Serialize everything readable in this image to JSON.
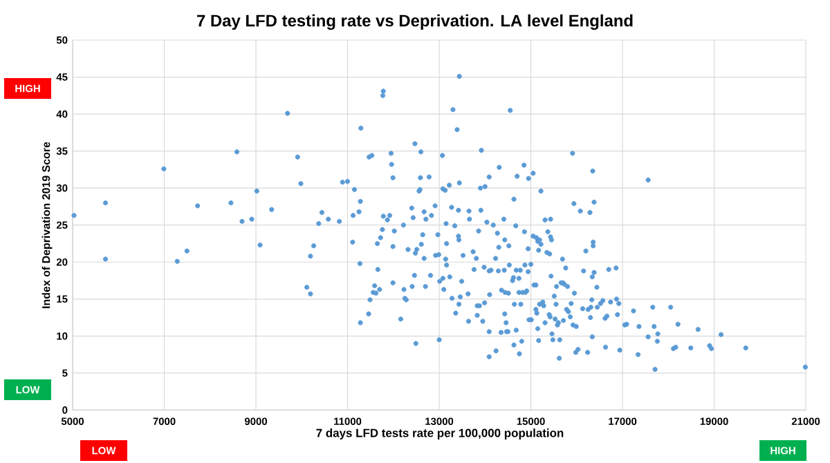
{
  "chart_data": {
    "type": "scatter",
    "title": "7 Day LFD testing rate vs Deprivation.  LA level England",
    "xlabel": "7 days LFD tests rate per 100,000 population",
    "ylabel": "Index of Deprivation 2019 Score",
    "annotations": [
      "HIGH",
      "LOW",
      "LOW",
      "HIGH"
    ],
    "xlim": [
      5000,
      21000
    ],
    "xticks": [
      5000,
      7000,
      9000,
      11000,
      13000,
      15000,
      17000,
      19000,
      21000
    ],
    "ylim": [
      0,
      50
    ],
    "yticks": [
      0,
      5,
      10,
      15,
      20,
      25,
      30,
      35,
      40,
      45,
      50
    ],
    "grid": true,
    "marker": "circle",
    "color": "#5b9bd5",
    "x": [
      5030,
      5717,
      5717,
      6990,
      7283,
      7495,
      7727,
      8454,
      8585,
      8697,
      8909,
      9020,
      9091,
      9343,
      9690,
      9910,
      9980,
      10110,
      10190,
      10190,
      10260,
      10370,
      10440,
      10580,
      10820,
      10890,
      11000,
      11120,
      11110,
      11150,
      11250,
      11280,
      11290,
      11270,
      11280,
      11460,
      11490,
      11470,
      11530,
      11560,
      11590,
      11620,
      11660,
      11700,
      11650,
      11720,
      11760,
      11770,
      11780,
      11780,
      11870,
      11920,
      11950,
      11960,
      11990,
      11990,
      11990,
      12020,
      12160,
      12220,
      12230,
      12250,
      12280,
      12320,
      12400,
      12430,
      12410,
      12460,
      12470,
      12480,
      12490,
      12510,
      12560,
      12580,
      12590,
      12600,
      12610,
      12640,
      12670,
      12670,
      12700,
      12710,
      12780,
      12810,
      12830,
      12910,
      12920,
      12970,
      12990,
      13000,
      13010,
      13070,
      13080,
      13080,
      13100,
      13130,
      13140,
      13150,
      13160,
      13160,
      13220,
      13230,
      13270,
      13280,
      13300,
      13340,
      13360,
      13390,
      13420,
      13420,
      13430,
      13430,
      13440,
      13440,
      13460,
      13490,
      13520,
      13630,
      13640,
      13650,
      13660,
      13920,
      13900,
      13910,
      13860,
      13810,
      13740,
      13760,
      13830,
      13830,
      13880,
      13950,
      13980,
      13990,
      14000,
      14040,
      14090,
      14090,
      14100,
      14090,
      14090,
      14130,
      14180,
      14230,
      14240,
      14270,
      14290,
      14300,
      14310,
      14350,
      14360,
      14410,
      14420,
      14430,
      14430,
      14440,
      14460,
      14470,
      14500,
      14510,
      14520,
      14530,
      14550,
      14600,
      14620,
      14630,
      14630,
      14640,
      14670,
      14680,
      14680,
      14700,
      14740,
      14740,
      14750,
      14770,
      14780,
      14800,
      14820,
      14850,
      14860,
      14870,
      14880,
      14910,
      14940,
      14940,
      14950,
      14960,
      15000,
      15010,
      15050,
      15050,
      15070,
      15110,
      15110,
      15120,
      15130,
      15150,
      15150,
      15170,
      15170,
      15190,
      15190,
      15220,
      15220,
      15260,
      15280,
      15310,
      15310,
      15350,
      15370,
      15400,
      15410,
      15420,
      15430,
      15430,
      15440,
      15450,
      15460,
      15480,
      15510,
      15530,
      15550,
      15560,
      15580,
      15600,
      15620,
      15630,
      15660,
      15690,
      15700,
      15710,
      15730,
      15760,
      15780,
      15800,
      15820,
      15860,
      15880,
      15910,
      15920,
      15940,
      15950,
      15980,
      15990,
      16030,
      16080,
      16130,
      16150,
      16200,
      16240,
      16250,
      16290,
      16300,
      16310,
      16330,
      16340,
      16340,
      16350,
      16360,
      16360,
      16380,
      16380,
      16440,
      16450,
      16520,
      16570,
      16620,
      16630,
      16660,
      16700,
      16740,
      16860,
      16870,
      16890,
      16920,
      16940,
      17050,
      17090,
      17240,
      17360,
      17340,
      17560,
      17560,
      17660,
      17690,
      17770,
      17760,
      17710,
      18050,
      18110,
      18160,
      18210,
      18490,
      18650,
      18900,
      18940,
      19150,
      19690,
      20990
    ],
    "values": [
      26.3,
      28.0,
      20.4,
      32.6,
      20.1,
      21.5,
      27.6,
      28.0,
      34.9,
      25.5,
      25.8,
      29.6,
      22.3,
      27.1,
      40.1,
      34.2,
      30.6,
      16.6,
      15.7,
      20.8,
      22.2,
      25.2,
      26.7,
      25.8,
      25.5,
      30.8,
      30.9,
      26.3,
      22.7,
      29.8,
      26.8,
      28.2,
      38.1,
      19.8,
      11.8,
      13.0,
      14.9,
      34.2,
      34.4,
      15.9,
      16.8,
      15.8,
      19.0,
      16.3,
      22.5,
      23.3,
      24.4,
      42.5,
      43.1,
      26.2,
      25.7,
      26.3,
      34.7,
      33.2,
      31.4,
      22.1,
      17.2,
      24.2,
      12.3,
      25.0,
      16.3,
      15.1,
      14.9,
      21.7,
      27.3,
      26.0,
      16.7,
      18.2,
      36.0,
      21.2,
      9.0,
      21.7,
      29.6,
      29.8,
      31.4,
      34.9,
      22.4,
      23.7,
      26.8,
      20.5,
      16.7,
      25.8,
      31.5,
      18.2,
      26.3,
      27.6,
      20.9,
      23.7,
      21.0,
      9.5,
      17.4,
      34.4,
      29.9,
      17.8,
      16.3,
      29.7,
      20.4,
      25.2,
      19.6,
      22.5,
      30.4,
      18.0,
      27.4,
      15.1,
      40.6,
      24.9,
      13.1,
      37.9,
      27.0,
      23.5,
      23.0,
      14.3,
      45.1,
      30.7,
      15.3,
      17.4,
      20.9,
      15.7,
      12.0,
      26.9,
      25.8,
      35.1,
      30.0,
      27.0,
      24.2,
      20.5,
      21.4,
      19.0,
      14.1,
      12.8,
      14.1,
      12.0,
      19.3,
      14.5,
      30.2,
      25.4,
      31.5,
      18.8,
      15.6,
      10.6,
      7.2,
      18.9,
      25.0,
      20.5,
      8.0,
      23.9,
      18.8,
      22.0,
      32.8,
      10.5,
      16.2,
      25.8,
      18.9,
      23.0,
      13.0,
      15.9,
      11.8,
      10.6,
      10.6,
      15.8,
      22.2,
      19.6,
      40.5,
      17.5,
      17.9,
      8.8,
      28.5,
      14.3,
      24.9,
      10.8,
      18.9,
      31.6,
      17.8,
      15.9,
      7.6,
      18.9,
      14.3,
      9.3,
      15.9,
      33.1,
      24.1,
      19.6,
      15.9,
      16.1,
      18.7,
      21.8,
      31.3,
      12.2,
      19.7,
      12.2,
      32.0,
      23.5,
      16.9,
      16.9,
      13.6,
      23.3,
      13.1,
      11.0,
      22.8,
      9.4,
      21.6,
      14.3,
      23.0,
      29.6,
      22.4,
      14.6,
      14.1,
      25.7,
      11.8,
      21.3,
      24.1,
      12.9,
      21.1,
      12.6,
      25.8,
      23.4,
      18.1,
      23.0,
      10.3,
      9.5,
      15.4,
      12.3,
      14.3,
      16.7,
      11.5,
      11.8,
      7.0,
      9.5,
      17.2,
      20.4,
      17.2,
      12.1,
      17.0,
      19.2,
      13.6,
      16.7,
      13.3,
      12.6,
      14.4,
      34.7,
      11.5,
      27.9,
      15.8,
      7.8,
      11.3,
      8.2,
      26.9,
      13.7,
      18.8,
      21.5,
      7.8,
      13.6,
      26.7,
      12.5,
      13.9,
      14.9,
      9.9,
      18.0,
      32.3,
      22.7,
      22.2,
      28.1,
      18.6,
      16.6,
      13.9,
      14.4,
      14.8,
      12.4,
      8.5,
      12.7,
      19.0,
      14.6,
      19.2,
      15.0,
      12.9,
      14.4,
      8.1,
      11.5,
      11.6,
      13.4,
      11.3,
      7.5,
      31.1,
      9.9,
      13.9,
      11.3,
      10.3,
      9.3,
      5.5,
      13.9,
      8.3,
      8.5,
      11.6,
      8.4,
      10.9,
      8.7,
      8.3,
      10.2,
      8.4,
      5.8
    ]
  }
}
